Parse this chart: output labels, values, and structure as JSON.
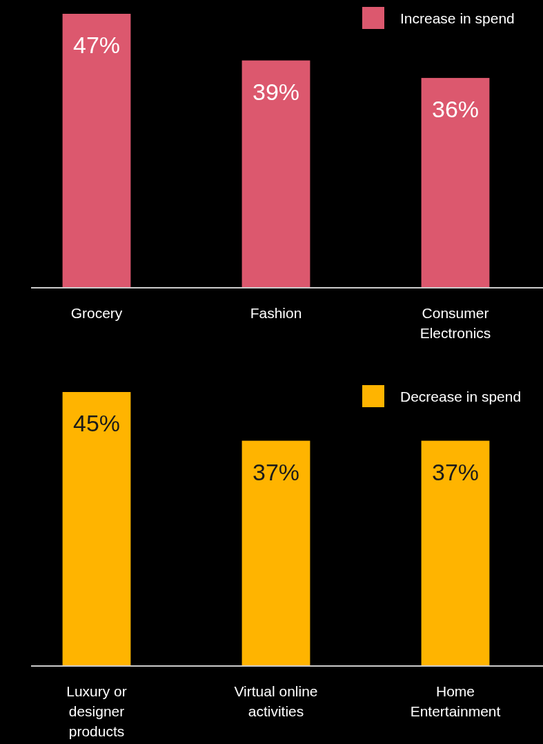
{
  "chart_data": [
    {
      "type": "bar",
      "categories": [
        "Grocery",
        "Fashion",
        "Consumer Electronics"
      ],
      "legend": "top right",
      "series": [
        {
          "name": "Increase in spend",
          "color": "#dc586e",
          "values": [
            47,
            39,
            36
          ],
          "value_labels": [
            "47%",
            "39%",
            "36%"
          ]
        }
      ]
    },
    {
      "type": "bar",
      "categories": [
        "Luxury or designer products",
        "Virtual online activities",
        "Home Entertainment"
      ],
      "legend": "top right",
      "series": [
        {
          "name": "Decrease in spend",
          "color": "#ffb400",
          "values": [
            45,
            37,
            37
          ],
          "value_labels": [
            "45%",
            "37%",
            "37%"
          ]
        }
      ]
    }
  ]
}
